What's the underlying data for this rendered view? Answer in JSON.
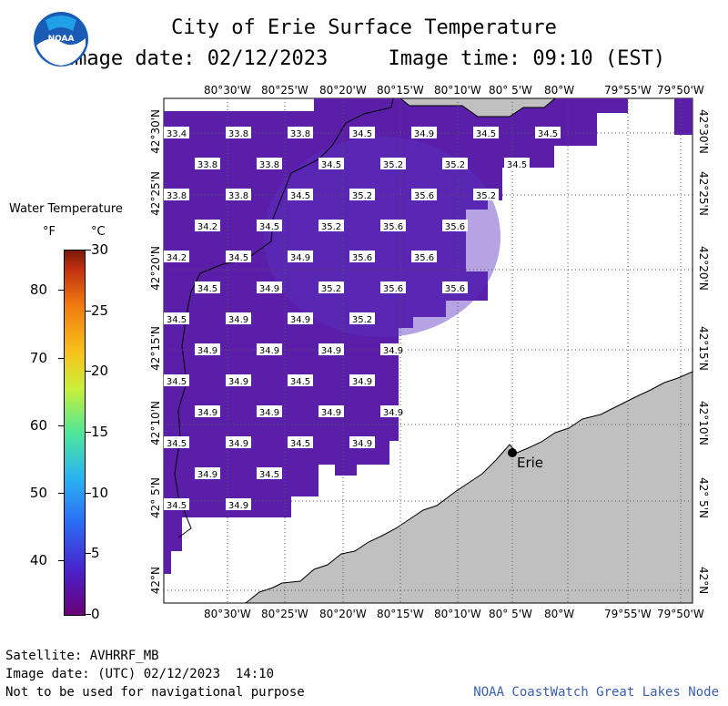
{
  "header": {
    "title": "City of Erie Surface Temperature",
    "date_line": "Image date: 02/12/2023     Image time: 09:10 (EST)"
  },
  "logo": {
    "text": "NOAA"
  },
  "legend": {
    "title": "Water Temperature",
    "unit_f": "°F",
    "unit_c": "°C",
    "f_ticks": [
      {
        "label": "80",
        "f": 80
      },
      {
        "label": "70",
        "f": 70
      },
      {
        "label": "60",
        "f": 60
      },
      {
        "label": "50",
        "f": 50
      },
      {
        "label": "40",
        "f": 40
      }
    ],
    "c_ticks": [
      {
        "label": "30",
        "c": 30
      },
      {
        "label": "25",
        "c": 25
      },
      {
        "label": "20",
        "c": 20
      },
      {
        "label": "15",
        "c": 15
      },
      {
        "label": "10",
        "c": 10
      },
      {
        "label": "5",
        "c": 5
      },
      {
        "label": "0",
        "c": 0
      }
    ]
  },
  "axes": {
    "lon_labels": [
      "80°30'W",
      "80°25'W",
      "80°20'W",
      "80°15'W",
      "80°10'W",
      "80° 5'W",
      "80°W",
      "79°55'W",
      "79°50'W"
    ],
    "lat_labels": [
      "42°30'N",
      "42°25'N",
      "42°20'N",
      "42°15'N",
      "42°10'N",
      "42° 5'N",
      "42°N"
    ]
  },
  "map": {
    "city_label": "Erie",
    "water_color": "#5a1ea8",
    "land_color": "#c0c0c0",
    "temperatures": [
      {
        "row": 0,
        "col": 0,
        "v": "33.4"
      },
      {
        "row": 0,
        "col": 1,
        "v": "33.8"
      },
      {
        "row": 0,
        "col": 2,
        "v": "33.8"
      },
      {
        "row": 0,
        "col": 3,
        "v": "34.5"
      },
      {
        "row": 0,
        "col": 4,
        "v": "34.9"
      },
      {
        "row": 0,
        "col": 5,
        "v": "34.5"
      },
      {
        "row": 0,
        "col": 6,
        "v": "34.5"
      },
      {
        "row": 1,
        "col": 0,
        "v": "33.8"
      },
      {
        "row": 1,
        "col": 1,
        "v": "33.8"
      },
      {
        "row": 1,
        "col": 2,
        "v": "34.5"
      },
      {
        "row": 1,
        "col": 3,
        "v": "35.2"
      },
      {
        "row": 1,
        "col": 4,
        "v": "35.2"
      },
      {
        "row": 1,
        "col": 5,
        "v": "34.5"
      },
      {
        "row": 2,
        "col": 0,
        "v": "33.8"
      },
      {
        "row": 2,
        "col": 1,
        "v": "33.8"
      },
      {
        "row": 2,
        "col": 2,
        "v": "34.5"
      },
      {
        "row": 2,
        "col": 3,
        "v": "35.2"
      },
      {
        "row": 2,
        "col": 4,
        "v": "35.6"
      },
      {
        "row": 2,
        "col": 5,
        "v": "35.2"
      },
      {
        "row": 3,
        "col": 0,
        "v": "34.2"
      },
      {
        "row": 3,
        "col": 1,
        "v": "34.5"
      },
      {
        "row": 3,
        "col": 2,
        "v": "35.2"
      },
      {
        "row": 3,
        "col": 3,
        "v": "35.6"
      },
      {
        "row": 3,
        "col": 4,
        "v": "35.6"
      },
      {
        "row": 4,
        "col": 0,
        "v": "34.2"
      },
      {
        "row": 4,
        "col": 1,
        "v": "34.5"
      },
      {
        "row": 4,
        "col": 2,
        "v": "34.9"
      },
      {
        "row": 4,
        "col": 3,
        "v": "35.6"
      },
      {
        "row": 4,
        "col": 4,
        "v": "35.6"
      },
      {
        "row": 5,
        "col": 0,
        "v": "34.5"
      },
      {
        "row": 5,
        "col": 1,
        "v": "34.9"
      },
      {
        "row": 5,
        "col": 2,
        "v": "35.2"
      },
      {
        "row": 5,
        "col": 3,
        "v": "35.6"
      },
      {
        "row": 5,
        "col": 4,
        "v": "35.6"
      },
      {
        "row": 6,
        "col": 0,
        "v": "34.5"
      },
      {
        "row": 6,
        "col": 1,
        "v": "34.9"
      },
      {
        "row": 6,
        "col": 2,
        "v": "34.9"
      },
      {
        "row": 6,
        "col": 3,
        "v": "35.2"
      },
      {
        "row": 7,
        "col": 0,
        "v": "34.9"
      },
      {
        "row": 7,
        "col": 1,
        "v": "34.9"
      },
      {
        "row": 7,
        "col": 2,
        "v": "34.9"
      },
      {
        "row": 7,
        "col": 3,
        "v": "34.9"
      },
      {
        "row": 8,
        "col": 0,
        "v": "34.5"
      },
      {
        "row": 8,
        "col": 1,
        "v": "34.9"
      },
      {
        "row": 8,
        "col": 2,
        "v": "34.5"
      },
      {
        "row": 8,
        "col": 3,
        "v": "34.9"
      },
      {
        "row": 9,
        "col": 0,
        "v": "34.9"
      },
      {
        "row": 9,
        "col": 1,
        "v": "34.9"
      },
      {
        "row": 9,
        "col": 2,
        "v": "34.9"
      },
      {
        "row": 9,
        "col": 3,
        "v": "34.9"
      },
      {
        "row": 10,
        "col": 0,
        "v": "34.5"
      },
      {
        "row": 10,
        "col": 1,
        "v": "34.9"
      },
      {
        "row": 10,
        "col": 2,
        "v": "34.5"
      },
      {
        "row": 10,
        "col": 3,
        "v": "34.9"
      },
      {
        "row": 11,
        "col": 0,
        "v": "34.9"
      },
      {
        "row": 11,
        "col": 1,
        "v": "34.5"
      },
      {
        "row": 12,
        "col": 0,
        "v": "34.5"
      },
      {
        "row": 12,
        "col": 1,
        "v": "34.9"
      }
    ]
  },
  "footer": {
    "satellite": "Satellite: AVHRRF_MB",
    "utc_date": "Image date: (UTC) 02/12/2023  14:10",
    "disclaimer": "Not to be used for navigational purpose",
    "credit": "NOAA CoastWatch Great Lakes Node"
  }
}
